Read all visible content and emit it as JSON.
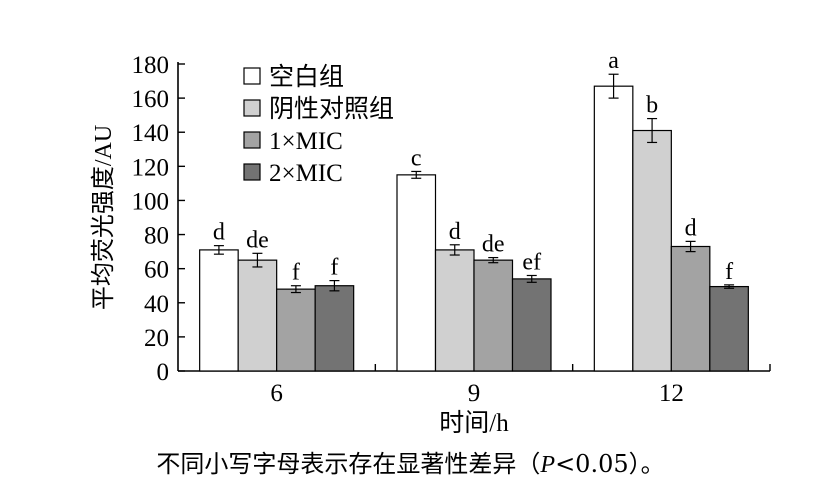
{
  "chart_data": {
    "type": "bar",
    "ylabel": "平均荧光强度/AU",
    "xlabel": "时间/h",
    "ylim": [
      0,
      180
    ],
    "yticks": [
      0,
      20,
      40,
      60,
      80,
      100,
      120,
      140,
      160,
      180
    ],
    "categories": [
      "6",
      "9",
      "12"
    ],
    "legend_position": "top-left",
    "series": [
      {
        "name": "空白组",
        "color": "#ffffff",
        "values": [
          71,
          115,
          167
        ],
        "errors": [
          2.5,
          2,
          7
        ],
        "letters": [
          "d",
          "c",
          "a"
        ]
      },
      {
        "name": "阴性对照组",
        "color": "#d0d0d0",
        "values": [
          65,
          71,
          141
        ],
        "errors": [
          4,
          3,
          7
        ],
        "letters": [
          "de",
          "d",
          "b"
        ]
      },
      {
        "name": "1×MIC",
        "color": "#a3a3a3",
        "values": [
          48,
          65,
          73
        ],
        "errors": [
          2,
          1.5,
          3
        ],
        "letters": [
          "f",
          "de",
          "d"
        ]
      },
      {
        "name": "2×MIC",
        "color": "#737373",
        "values": [
          50,
          54,
          49.5
        ],
        "errors": [
          3,
          2,
          1
        ],
        "letters": [
          "f",
          "ef",
          "f"
        ]
      }
    ]
  },
  "caption": {
    "text": "不同小写字母表示存在显著性差异（",
    "p_symbol": "P",
    "text_after": "<0.05）。"
  }
}
